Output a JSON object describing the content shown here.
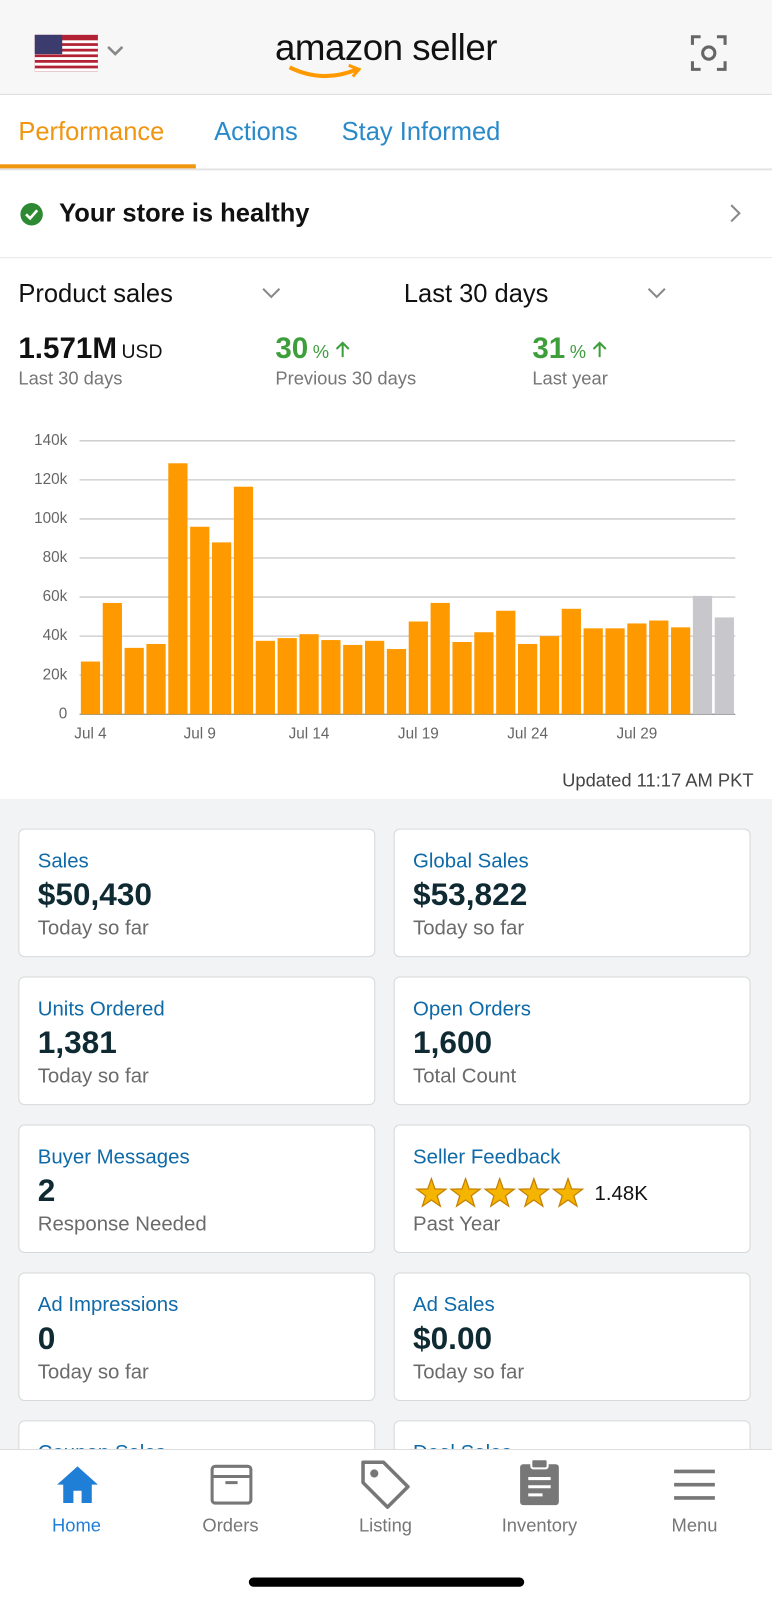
{
  "header": {
    "title": "amazon seller"
  },
  "tabs": [
    "Performance",
    "Actions",
    "Stay Informed"
  ],
  "status": "Your store is healthy",
  "filters": {
    "metric": "Product sales",
    "period": "Last 30 days"
  },
  "stats": [
    {
      "value": "1.571M",
      "unit": "USD",
      "caption": "Last 30 days"
    },
    {
      "value": "30",
      "unit": "%",
      "caption": "Previous 30 days"
    },
    {
      "value": "31",
      "unit": "%",
      "caption": "Last year"
    }
  ],
  "chart_data": {
    "type": "bar",
    "categories": [
      "Jul 4",
      null,
      null,
      null,
      null,
      "Jul 9",
      null,
      null,
      null,
      null,
      "Jul 14",
      null,
      null,
      null,
      null,
      "Jul 19",
      null,
      null,
      null,
      null,
      "Jul 24",
      null,
      null,
      null,
      null,
      "Jul 29",
      null,
      null,
      null,
      null
    ],
    "values": [
      27000,
      57000,
      34000,
      36000,
      128500,
      96000,
      88000,
      116500,
      37600,
      39000,
      41000,
      38000,
      35500,
      37600,
      33400,
      47500,
      57000,
      37000,
      42000,
      53000,
      36000,
      40000,
      54000,
      44000,
      44000,
      46500,
      48000,
      44500,
      60600,
      49600
    ],
    "colors": [
      "#ff9900",
      "#ff9900",
      "#ff9900",
      "#ff9900",
      "#ff9900",
      "#ff9900",
      "#ff9900",
      "#ff9900",
      "#ff9900",
      "#ff9900",
      "#ff9900",
      "#ff9900",
      "#ff9900",
      "#ff9900",
      "#ff9900",
      "#ff9900",
      "#ff9900",
      "#ff9900",
      "#ff9900",
      "#ff9900",
      "#ff9900",
      "#ff9900",
      "#ff9900",
      "#ff9900",
      "#ff9900",
      "#ff9900",
      "#ff9900",
      "#ff9900",
      "#c8c8cc",
      "#c8c8cc"
    ],
    "ylim": [
      0,
      140000
    ],
    "yticks": [
      0,
      {
        "value": 20000,
        "label": "20k"
      },
      {
        "value": 40000,
        "label": "40k"
      },
      {
        "value": 60000,
        "label": "60k"
      },
      {
        "value": 80000,
        "label": "80k"
      },
      {
        "value": 100000,
        "label": "100k"
      },
      {
        "value": 120000,
        "label": "120k"
      },
      {
        "value": 140000,
        "label": "140k"
      }
    ],
    "grid": true
  },
  "updated": "Updated 11:17 AM PKT",
  "cards": [
    {
      "title": "Sales",
      "value": "$50,430",
      "caption": "Today so far"
    },
    {
      "title": "Global Sales",
      "value": "$53,822",
      "caption": "Today so far"
    },
    {
      "title": "Units Ordered",
      "value": "1,381",
      "caption": "Today so far"
    },
    {
      "title": "Open Orders",
      "value": "1,600",
      "caption": "Total Count"
    },
    {
      "title": "Buyer Messages",
      "value": "2",
      "caption": "Response Needed"
    },
    {
      "title": "Seller Feedback",
      "rating_count": "1.48K",
      "caption": "Past Year"
    },
    {
      "title": "Ad Impressions",
      "value": "0",
      "caption": "Today so far"
    },
    {
      "title": "Ad Sales",
      "value": "$0.00",
      "caption": "Today so far"
    },
    {
      "title": "Coupon Sales"
    },
    {
      "title": "Deal Sales"
    }
  ],
  "nav": [
    "Home",
    "Orders",
    "Listing",
    "Inventory",
    "Menu"
  ]
}
